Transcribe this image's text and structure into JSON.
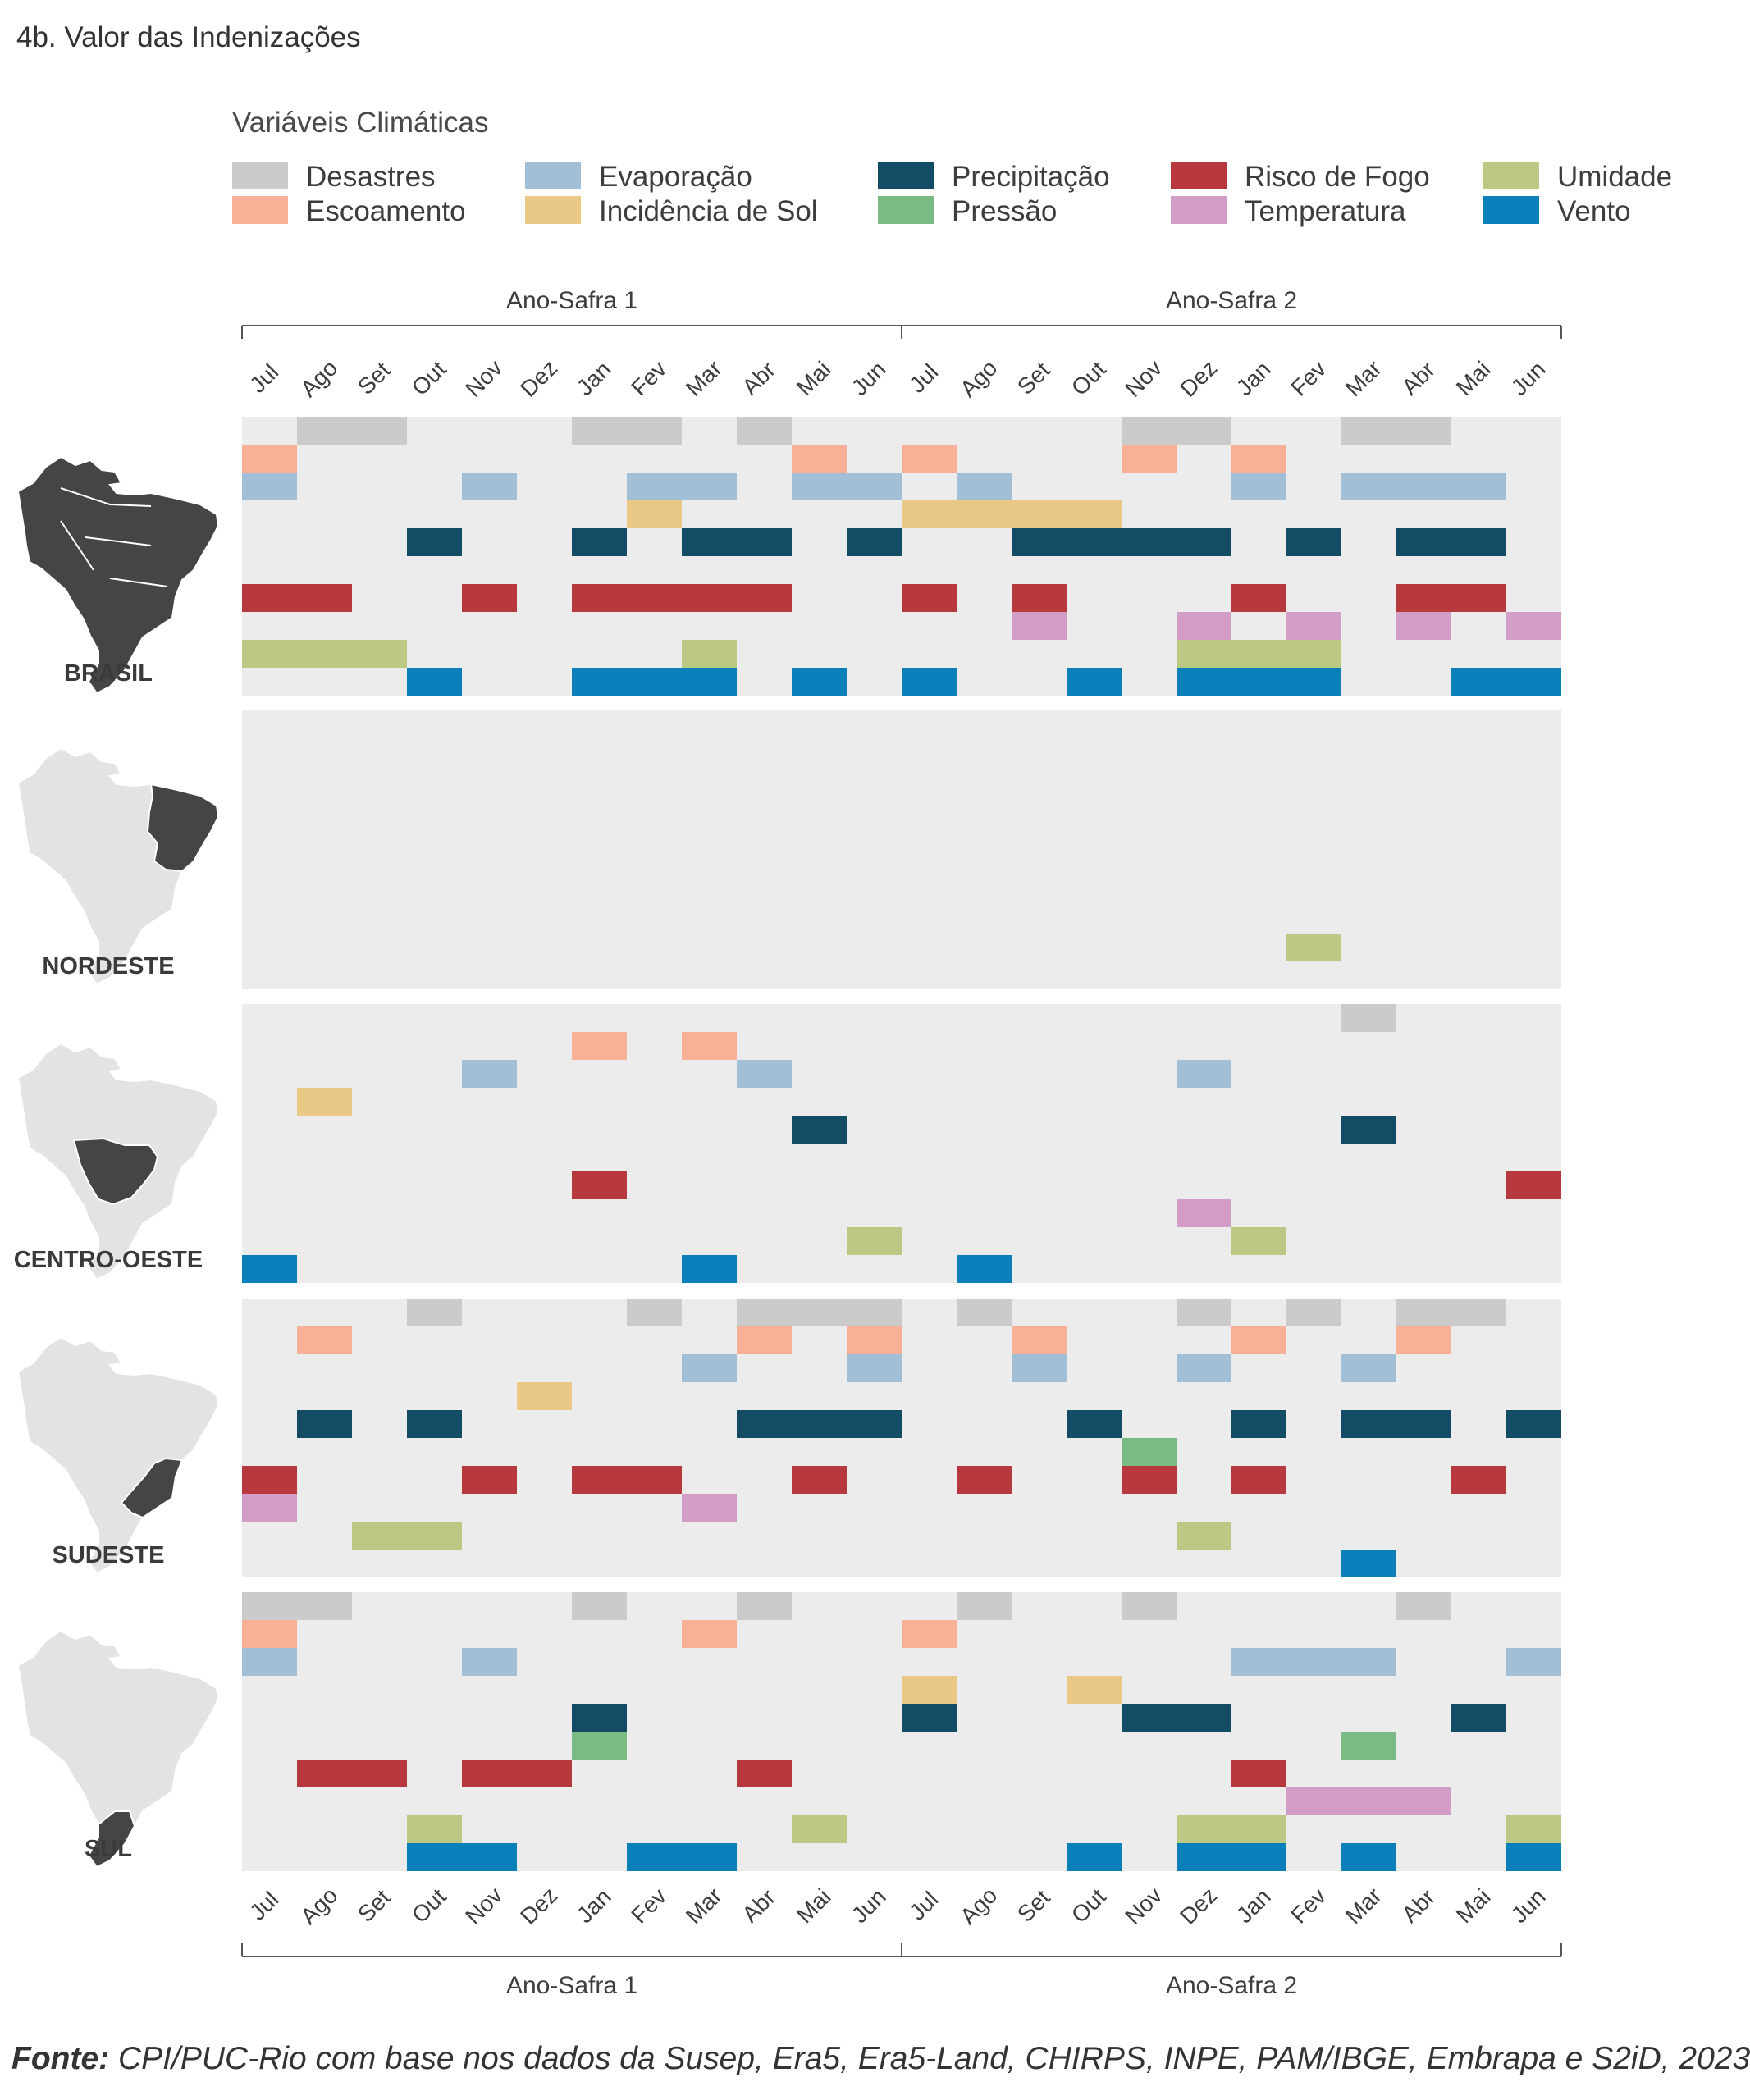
{
  "title": "4b. Valor das Indenizações",
  "legend": {
    "title": "Variáveis Climáticas",
    "items": [
      {
        "label": "Desastres",
        "color": "#cbcbcb"
      },
      {
        "label": "Escoamento",
        "color": "#f8b196"
      },
      {
        "label": "Evaporação",
        "color": "#a2bfd8"
      },
      {
        "label": "Incidência de Sol",
        "color": "#e9c985"
      },
      {
        "label": "Precipitação",
        "color": "#154c65"
      },
      {
        "label": "Pressão",
        "color": "#79bb82"
      },
      {
        "label": "Risco de Fogo",
        "color": "#b8393d"
      },
      {
        "label": "Temperatura",
        "color": "#d29ec8"
      },
      {
        "label": "Umidade",
        "color": "#bcc985"
      },
      {
        "label": "Vento",
        "color": "#0b7fba"
      }
    ]
  },
  "source": {
    "prefix": "Fonte:",
    "text": " CPI/PUC-Rio com base nos dados da Susep, Era5, Era5-Land, CHIRPS, INPE, PAM/IBGE, Embrapa e S2iD, 2023"
  },
  "chart_data": {
    "type": "heatmap",
    "periods": [
      "Ano-Safra 1",
      "Ano-Safra 2"
    ],
    "months": [
      "Jul",
      "Ago",
      "Set",
      "Out",
      "Nov",
      "Dez",
      "Jan",
      "Fev",
      "Mar",
      "Abr",
      "Mai",
      "Jun"
    ],
    "variables": [
      "Desastres",
      "Escoamento",
      "Evaporação",
      "Incidência de Sol",
      "Precipitação",
      "Pressão",
      "Risco de Fogo",
      "Temperatura",
      "Umidade",
      "Vento"
    ],
    "panels": [
      {
        "region": "BRASIL",
        "active": {
          "Desastres": [
            1,
            2,
            6,
            7,
            9,
            16,
            17,
            20,
            21
          ],
          "Escoamento": [
            0,
            10,
            12,
            16,
            18
          ],
          "Evaporação": [
            0,
            4,
            7,
            8,
            10,
            11,
            13,
            18,
            20,
            21,
            22
          ],
          "Incidência de Sol": [
            7,
            12,
            13,
            14,
            15
          ],
          "Precipitação": [
            3,
            6,
            8,
            9,
            11,
            14,
            15,
            16,
            17,
            19,
            21,
            22
          ],
          "Pressão": [],
          "Risco de Fogo": [
            0,
            1,
            4,
            6,
            7,
            8,
            9,
            12,
            14,
            18,
            21,
            22
          ],
          "Temperatura": [
            14,
            17,
            19,
            21,
            23
          ],
          "Umidade": [
            0,
            1,
            2,
            8,
            17,
            18,
            19
          ],
          "Vento": [
            3,
            6,
            7,
            8,
            10,
            12,
            15,
            17,
            18,
            19,
            22,
            23
          ]
        }
      },
      {
        "region": "NORDESTE",
        "active": {
          "Desastres": [],
          "Escoamento": [],
          "Evaporação": [],
          "Incidência de Sol": [],
          "Precipitação": [],
          "Pressão": [],
          "Risco de Fogo": [],
          "Temperatura": [],
          "Umidade": [
            19
          ],
          "Vento": []
        }
      },
      {
        "region": "CENTRO-OESTE",
        "active": {
          "Desastres": [
            20
          ],
          "Escoamento": [
            6,
            8
          ],
          "Evaporação": [
            4,
            9,
            17
          ],
          "Incidência de Sol": [
            1
          ],
          "Precipitação": [
            10,
            20
          ],
          "Pressão": [],
          "Risco de Fogo": [
            6,
            23
          ],
          "Temperatura": [
            17
          ],
          "Umidade": [
            11,
            18
          ],
          "Vento": [
            0,
            8,
            13
          ]
        }
      },
      {
        "region": "SUDESTE",
        "active": {
          "Desastres": [
            3,
            7,
            9,
            10,
            11,
            13,
            17,
            19,
            21,
            22
          ],
          "Escoamento": [
            1,
            9,
            11,
            14,
            18,
            21
          ],
          "Evaporação": [
            8,
            11,
            14,
            17,
            20
          ],
          "Incidência de Sol": [
            5
          ],
          "Precipitação": [
            1,
            3,
            9,
            10,
            11,
            15,
            18,
            20,
            21,
            23
          ],
          "Pressão": [
            16
          ],
          "Risco de Fogo": [
            0,
            4,
            6,
            7,
            10,
            13,
            16,
            18,
            22
          ],
          "Temperatura": [
            0,
            8
          ],
          "Umidade": [
            2,
            3,
            17
          ],
          "Vento": [
            20
          ]
        }
      },
      {
        "region": "SUL",
        "active": {
          "Desastres": [
            0,
            1,
            6,
            9,
            13,
            16,
            21
          ],
          "Escoamento": [
            0,
            8,
            12
          ],
          "Evaporação": [
            0,
            4,
            18,
            19,
            20,
            23
          ],
          "Incidência de Sol": [
            12,
            15
          ],
          "Precipitação": [
            6,
            12,
            16,
            17,
            22
          ],
          "Pressão": [
            6,
            20
          ],
          "Risco de Fogo": [
            1,
            2,
            4,
            5,
            9,
            18
          ],
          "Temperatura": [
            19,
            20,
            21
          ],
          "Umidade": [
            3,
            10,
            17,
            18,
            23
          ],
          "Vento": [
            3,
            4,
            7,
            8,
            15,
            17,
            18,
            20,
            23
          ]
        }
      }
    ]
  }
}
